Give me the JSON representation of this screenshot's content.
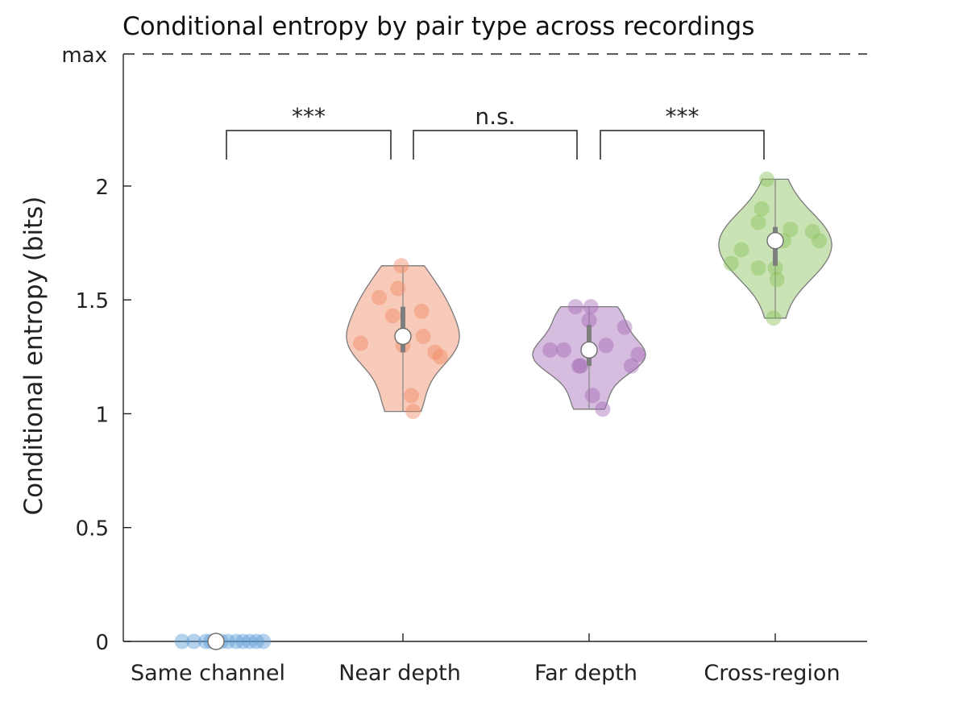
{
  "chart_data": {
    "type": "violin",
    "title": "Conditional entropy by pair type across recordings",
    "xlabel": "",
    "ylabel": "Conditional entropy (bits)",
    "ylim": [
      0,
      2.58
    ],
    "y_ticks": [
      0,
      0.5,
      1,
      1.5,
      2
    ],
    "y_tick_labels": [
      "0",
      "0.5",
      "1",
      "1.5",
      "2"
    ],
    "max_line": {
      "value": 2.58,
      "label": "max",
      "style": "dashed"
    },
    "categories": [
      "Same channel",
      "Near depth",
      "Far depth",
      "Cross-region"
    ],
    "series": [
      {
        "category": "Same channel",
        "color": "#5b9bd5",
        "median": 0,
        "q1": 0,
        "q3": 0,
        "min": 0,
        "max": 0,
        "points": [
          {
            "x": -0.2,
            "y": 0
          },
          {
            "x": -0.13,
            "y": 0
          },
          {
            "x": -0.06,
            "y": 0
          },
          {
            "x": -0.03,
            "y": 0
          },
          {
            "x": 0.03,
            "y": 0
          },
          {
            "x": 0.07,
            "y": 0
          },
          {
            "x": 0.12,
            "y": 0
          },
          {
            "x": 0.16,
            "y": 0
          },
          {
            "x": 0.2,
            "y": 0
          },
          {
            "x": 0.24,
            "y": 0
          },
          {
            "x": 0.28,
            "y": 0
          }
        ]
      },
      {
        "category": "Near depth",
        "color": "#f08a64",
        "median": 1.34,
        "q1": 1.27,
        "q3": 1.47,
        "min": 1.01,
        "max": 1.65,
        "points": [
          {
            "x": -0.01,
            "y": 1.65
          },
          {
            "x": -0.03,
            "y": 1.55
          },
          {
            "x": -0.14,
            "y": 1.51
          },
          {
            "x": -0.06,
            "y": 1.43
          },
          {
            "x": 0.11,
            "y": 1.45
          },
          {
            "x": 0.12,
            "y": 1.34
          },
          {
            "x": 0.0,
            "y": 1.3
          },
          {
            "x": -0.25,
            "y": 1.31
          },
          {
            "x": 0.19,
            "y": 1.27
          },
          {
            "x": 0.22,
            "y": 1.25
          },
          {
            "x": 0.05,
            "y": 1.08
          },
          {
            "x": 0.06,
            "y": 1.01
          }
        ]
      },
      {
        "category": "Far depth",
        "color": "#a36ab5",
        "median": 1.28,
        "q1": 1.21,
        "q3": 1.39,
        "min": 1.02,
        "max": 1.47,
        "points": [
          {
            "x": -0.08,
            "y": 1.47
          },
          {
            "x": 0.01,
            "y": 1.47
          },
          {
            "x": 0.0,
            "y": 1.41
          },
          {
            "x": 0.21,
            "y": 1.38
          },
          {
            "x": -0.23,
            "y": 1.28
          },
          {
            "x": -0.15,
            "y": 1.28
          },
          {
            "x": 0.1,
            "y": 1.3
          },
          {
            "x": 0.29,
            "y": 1.26
          },
          {
            "x": -0.06,
            "y": 1.21
          },
          {
            "x": -0.05,
            "y": 1.21
          },
          {
            "x": 0.25,
            "y": 1.21
          },
          {
            "x": 0.02,
            "y": 1.08
          },
          {
            "x": 0.08,
            "y": 1.02
          }
        ]
      },
      {
        "category": "Cross-region",
        "color": "#8ac05a",
        "median": 1.76,
        "q1": 1.65,
        "q3": 1.82,
        "min": 1.42,
        "max": 2.03,
        "points": [
          {
            "x": -0.05,
            "y": 2.03
          },
          {
            "x": -0.08,
            "y": 1.9
          },
          {
            "x": -0.1,
            "y": 1.84
          },
          {
            "x": 0.09,
            "y": 1.81
          },
          {
            "x": 0.05,
            "y": 1.76
          },
          {
            "x": 0.22,
            "y": 1.8
          },
          {
            "x": 0.26,
            "y": 1.76
          },
          {
            "x": -0.2,
            "y": 1.72
          },
          {
            "x": -0.26,
            "y": 1.66
          },
          {
            "x": -0.1,
            "y": 1.64
          },
          {
            "x": 0.0,
            "y": 1.64
          },
          {
            "x": 0.01,
            "y": 1.59
          },
          {
            "x": -0.01,
            "y": 1.42
          }
        ]
      }
    ],
    "significance": [
      {
        "from": 0,
        "to": 1,
        "label": "***"
      },
      {
        "from": 1,
        "to": 2,
        "label": "n.s."
      },
      {
        "from": 2,
        "to": 3,
        "label": "***"
      }
    ]
  }
}
